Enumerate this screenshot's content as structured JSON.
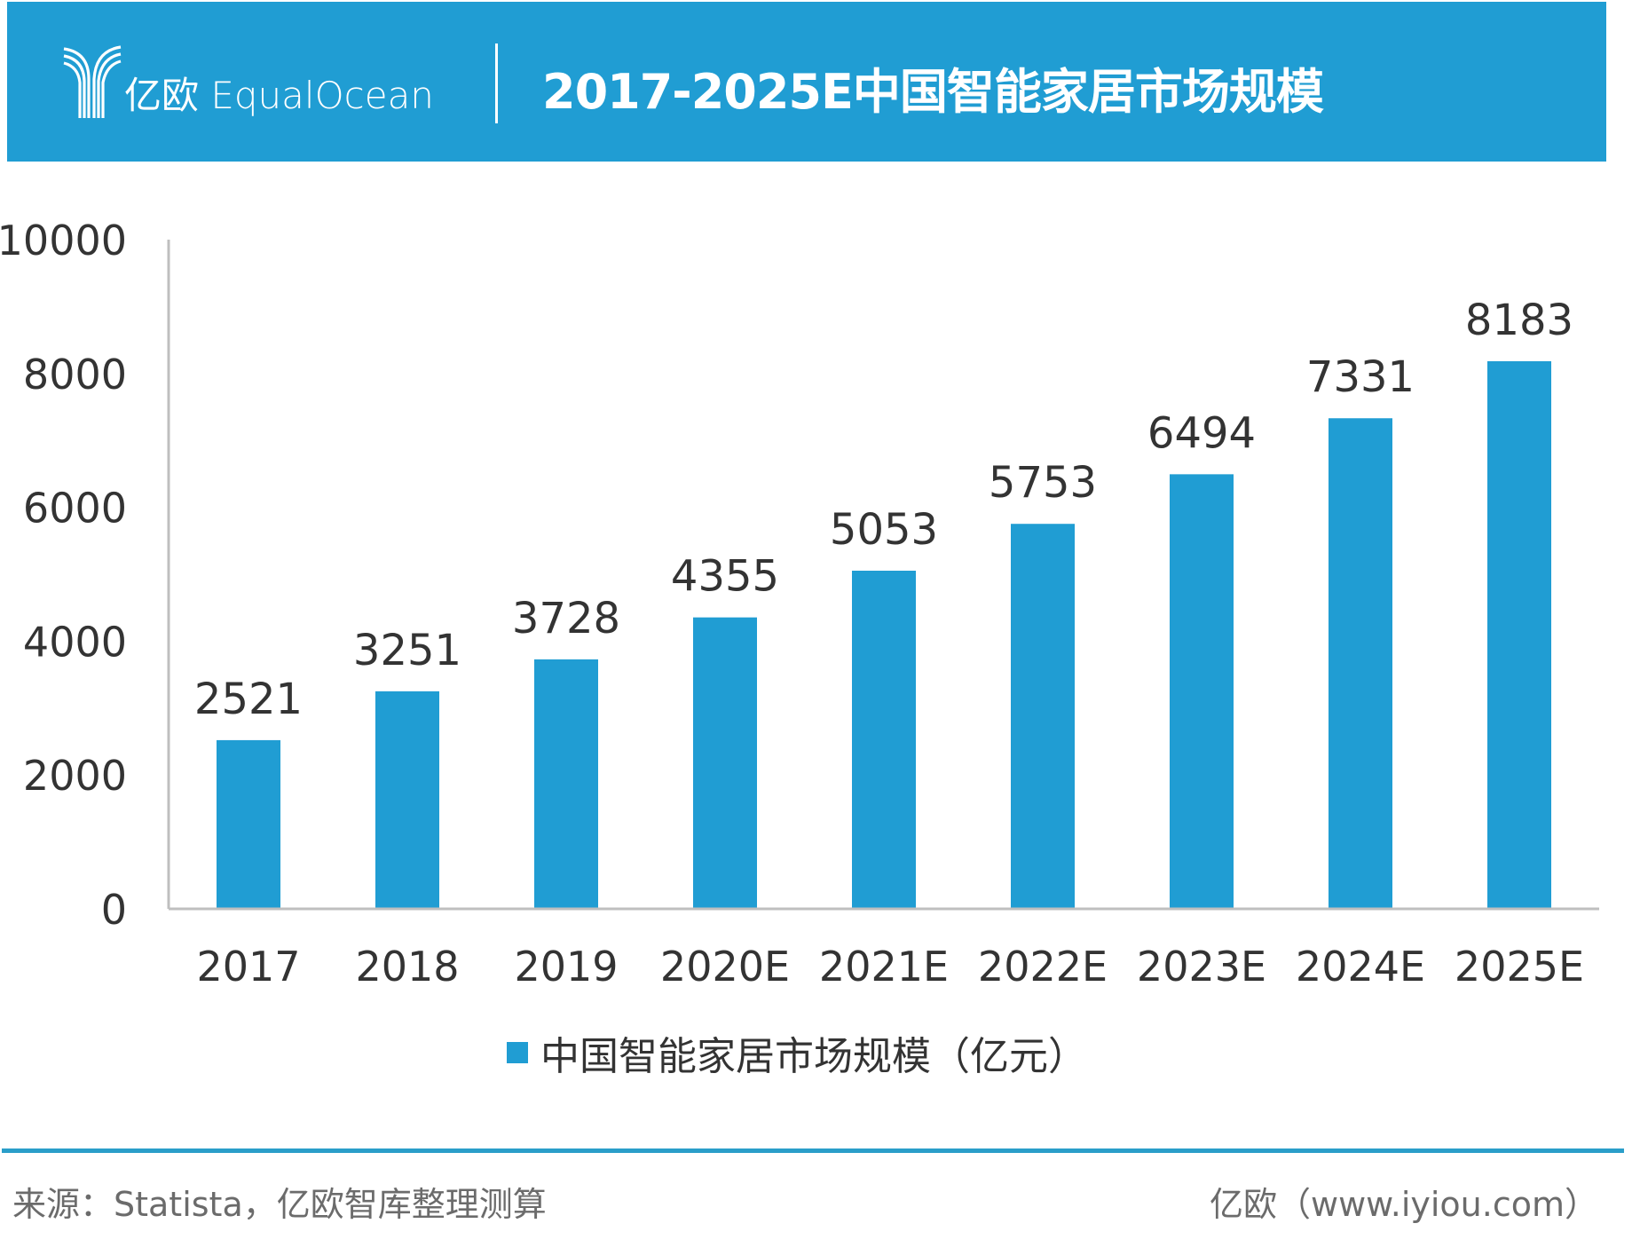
{
  "header": {
    "logo_text": "亿欧 EqualOcean",
    "logo_icon": "equalocean-y-logo-icon",
    "title": "2017-2025E中国智能家居市场规模"
  },
  "colors": {
    "brand": "#209dd3",
    "bar": "#209dd3",
    "axis": "#bfbfbf",
    "text": "#333333",
    "footer_text": "#6b6b6b"
  },
  "chart_data": {
    "type": "bar",
    "title": "2017-2025E中国智能家居市场规模",
    "xlabel": "",
    "ylabel": "",
    "categories": [
      "2017",
      "2018",
      "2019",
      "2020E",
      "2021E",
      "2022E",
      "2023E",
      "2024E",
      "2025E"
    ],
    "series": [
      {
        "name": "中国智能家居市场规模（亿元）",
        "values": [
          2521,
          3251,
          3728,
          4355,
          5053,
          5753,
          6494,
          7331,
          8183
        ]
      }
    ],
    "ylim": [
      0,
      10000
    ],
    "yticks": [
      0,
      2000,
      4000,
      6000,
      8000,
      10000
    ],
    "grid": false,
    "data_labels": true,
    "legend_position": "bottom"
  },
  "legend": {
    "label": "中国智能家居市场规模（亿元）"
  },
  "footer": {
    "source": "来源：Statista，亿欧智库整理测算",
    "site": "亿欧（www.iyiou.com）"
  }
}
